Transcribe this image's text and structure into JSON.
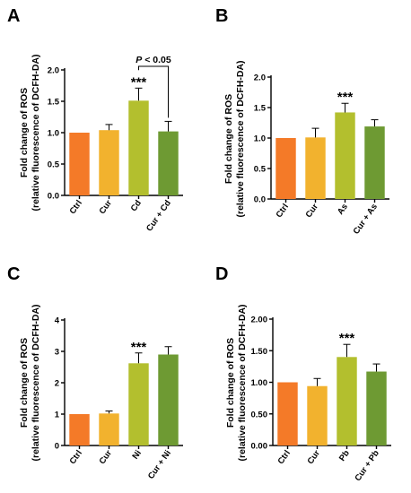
{
  "chart_data": [
    {
      "panel": "A",
      "type": "bar",
      "ylabel_line1": "Fold change of ROS",
      "ylabel_line2": "(relative fluorescence of DCFH-DA)",
      "categories": [
        "Ctrl",
        "Cur",
        "Cd",
        "Cur + Cd"
      ],
      "values": [
        1.0,
        1.04,
        1.51,
        1.02
      ],
      "errors": [
        0.0,
        0.09,
        0.2,
        0.16
      ],
      "ylim": [
        0,
        2.0
      ],
      "yticks": [
        "0.0",
        "0.5",
        "1.0",
        "1.5",
        "2.0"
      ],
      "yticks_values": [
        0,
        0.5,
        1.0,
        1.5,
        2.0
      ],
      "annotation": "***",
      "annotation_index": 2,
      "comparison": {
        "from": 2,
        "to": 3,
        "p_symbol": "P",
        "p_rest": " < 0.05"
      }
    },
    {
      "panel": "B",
      "type": "bar",
      "ylabel_line1": "Fold change of ROS",
      "ylabel_line2": "(relative fluorescence of DCFH-DA)",
      "categories": [
        "Ctrl",
        "Cur",
        "As",
        "Cur + As"
      ],
      "values": [
        1.0,
        1.01,
        1.42,
        1.19
      ],
      "errors": [
        0.0,
        0.15,
        0.15,
        0.11
      ],
      "ylim": [
        0,
        2.0
      ],
      "yticks": [
        "0.0",
        "0.5",
        "1.0",
        "1.5",
        "2.0"
      ],
      "yticks_values": [
        0,
        0.5,
        1.0,
        1.5,
        2.0
      ],
      "annotation": "***",
      "annotation_index": 2
    },
    {
      "panel": "C",
      "type": "bar",
      "ylabel_line1": "Fold change of ROS",
      "ylabel_line2": "(relative fluorescence of DCFH-DA)",
      "categories": [
        "Ctrl",
        "Cur",
        "Ni",
        "Cur + Ni"
      ],
      "values": [
        1.0,
        1.02,
        2.62,
        2.9
      ],
      "errors": [
        0.0,
        0.08,
        0.33,
        0.25
      ],
      "ylim": [
        0,
        4
      ],
      "yticks": [
        "0",
        "1",
        "2",
        "3",
        "4"
      ],
      "yticks_values": [
        0,
        1,
        2,
        3,
        4
      ],
      "annotation": "***",
      "annotation_index": 2
    },
    {
      "panel": "D",
      "type": "bar",
      "ylabel_line1": "Fold change of ROS",
      "ylabel_line2": "(relative fluorescence of DCFH-DA)",
      "categories": [
        "Ctrl",
        "Cur",
        "Pb",
        "Cur + Pb"
      ],
      "values": [
        1.0,
        0.94,
        1.4,
        1.17
      ],
      "errors": [
        0.0,
        0.12,
        0.2,
        0.12
      ],
      "ylim": [
        0,
        2.0
      ],
      "yticks": [
        "0.00",
        "0.50",
        "1.00",
        "1.50",
        "2.00"
      ],
      "yticks_values": [
        0,
        0.5,
        1.0,
        1.5,
        2.0
      ],
      "annotation": "***",
      "annotation_index": 2
    }
  ],
  "colors": [
    "#F47A28",
    "#F2B22E",
    "#B3BF2E",
    "#6E9A33"
  ]
}
